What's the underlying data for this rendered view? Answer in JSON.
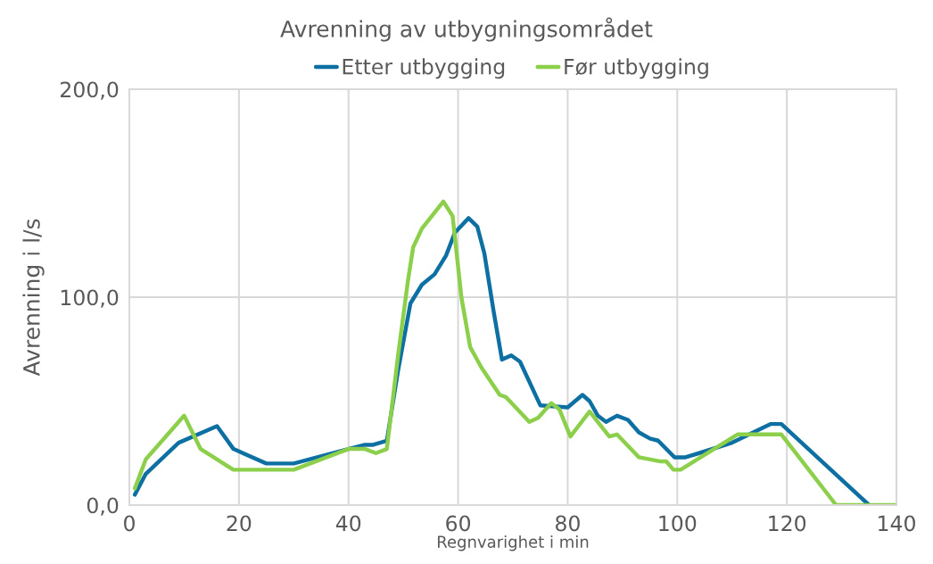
{
  "chart_data": {
    "type": "line",
    "title": "Avrenning av utbygningsområdet",
    "xlabel": "Regnvarighet i min",
    "ylabel": "Avrenning i l/s",
    "series": [
      {
        "name": "Etter utbygging",
        "color": "#0e70a2",
        "x": [
          1,
          3,
          9,
          16,
          19,
          25,
          30,
          40,
          43,
          44.5,
          47,
          49,
          51.3,
          53.4,
          55.7,
          57.8,
          59.4,
          61.9,
          63.5,
          64.8,
          66.5,
          68,
          69.7,
          71.3,
          75,
          80,
          82.7,
          84,
          85.5,
          87,
          89,
          91,
          93,
          95,
          96.5,
          99.5,
          101.5,
          104,
          110,
          117,
          119,
          135
        ],
        "values": [
          5,
          15,
          30,
          38,
          27,
          20,
          20,
          27,
          29,
          29,
          31,
          64,
          97,
          106,
          111,
          120,
          131,
          138,
          134,
          121,
          93,
          70,
          72,
          69,
          48,
          47,
          53,
          50,
          43,
          40,
          43,
          41,
          35,
          32,
          31,
          23,
          23,
          25,
          30,
          39,
          39,
          0
        ]
      },
      {
        "name": "Før utbygging",
        "color": "#8ccf4b",
        "x": [
          1,
          3,
          10,
          13,
          19,
          30,
          40,
          43,
          45,
          47,
          49,
          50.8,
          51.8,
          53.4,
          57.3,
          59,
          60.6,
          62.2,
          64.3,
          67.6,
          68.7,
          73,
          74.6,
          77,
          78.5,
          80.5,
          84,
          87.6,
          89,
          93,
          97,
          98,
          99.3,
          100.6,
          111,
          119,
          129,
          140
        ],
        "values": [
          8,
          22,
          43,
          27,
          17,
          17,
          27,
          27,
          25,
          27,
          71,
          107,
          124,
          133,
          146,
          139,
          100,
          76,
          66,
          53,
          52,
          40,
          42,
          49,
          46,
          33,
          45,
          33,
          34,
          23,
          21,
          21,
          17,
          17,
          34,
          34,
          0,
          0
        ]
      }
    ],
    "xlim": [
      0,
      140
    ],
    "ylim": [
      0,
      200
    ],
    "xticks": [
      0,
      20,
      40,
      60,
      80,
      100,
      120,
      140
    ],
    "yticks": [
      {
        "value": 0,
        "label": "0,0"
      },
      {
        "value": 100,
        "label": "100,0"
      },
      {
        "value": 200,
        "label": "200,0"
      }
    ],
    "grid": true,
    "legend": "top",
    "marker": "none",
    "line_style": "solid"
  }
}
